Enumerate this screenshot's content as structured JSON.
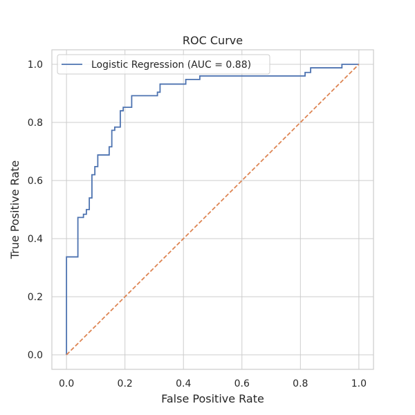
{
  "chart_data": {
    "type": "line",
    "title": "ROC Curve",
    "xlabel": "False Positive Rate",
    "ylabel": "True Positive Rate",
    "xlim": [
      -0.05,
      1.05
    ],
    "ylim": [
      -0.05,
      1.05
    ],
    "xticks": [
      "0.0",
      "0.2",
      "0.4",
      "0.6",
      "0.8",
      "1.0"
    ],
    "yticks": [
      "0.0",
      "0.2",
      "0.4",
      "0.6",
      "0.8",
      "1.0"
    ],
    "grid": true,
    "legend": {
      "placement": "upper-left",
      "entries": [
        "Logistic Regression (AUC = 0.88)"
      ]
    },
    "series": [
      {
        "name": "Logistic Regression (AUC = 0.88)",
        "color": "#4c72b0",
        "style": "step",
        "x": [
          0.0,
          0.0,
          0.039,
          0.039,
          0.058,
          0.058,
          0.068,
          0.068,
          0.078,
          0.078,
          0.087,
          0.087,
          0.097,
          0.097,
          0.107,
          0.107,
          0.146,
          0.146,
          0.155,
          0.155,
          0.165,
          0.165,
          0.184,
          0.184,
          0.194,
          0.194,
          0.223,
          0.223,
          0.311,
          0.311,
          0.32,
          0.32,
          0.408,
          0.408,
          0.456,
          0.456,
          0.816,
          0.816,
          0.835,
          0.835,
          0.942,
          0.942,
          1.0
        ],
        "y": [
          0.0,
          0.337,
          0.337,
          0.473,
          0.473,
          0.484,
          0.484,
          0.5,
          0.5,
          0.54,
          0.54,
          0.62,
          0.62,
          0.648,
          0.648,
          0.688,
          0.688,
          0.716,
          0.716,
          0.773,
          0.773,
          0.784,
          0.784,
          0.84,
          0.84,
          0.852,
          0.852,
          0.892,
          0.892,
          0.904,
          0.904,
          0.932,
          0.932,
          0.948,
          0.948,
          0.96,
          0.96,
          0.972,
          0.972,
          0.988,
          0.988,
          1.0,
          1.0
        ]
      },
      {
        "name": "",
        "color": "#dd8452",
        "style": "dashed",
        "x": [
          0.0,
          1.0
        ],
        "y": [
          0.0,
          1.0
        ]
      }
    ]
  }
}
